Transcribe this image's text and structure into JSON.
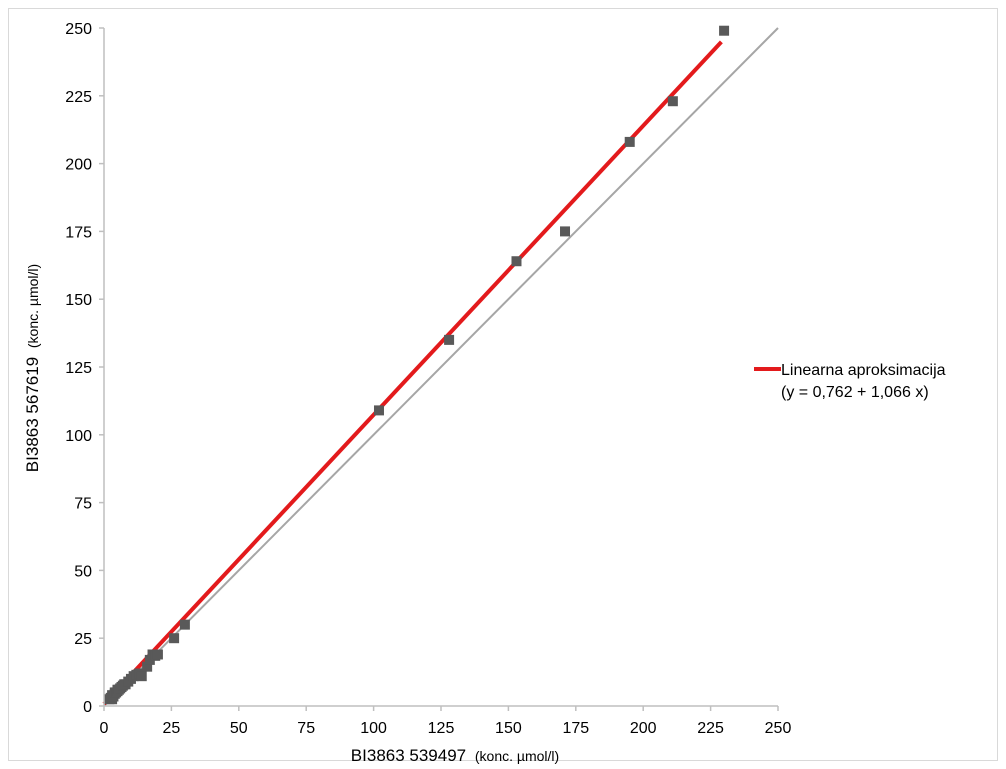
{
  "chart_data": {
    "type": "scatter",
    "xlabel": {
      "main": "BI3863 539497",
      "unit": "(konc. µmol/l)"
    },
    "ylabel": {
      "main": "BI3863 567619",
      "unit": "(konc. µmol/l)"
    },
    "xlim": [
      0,
      250
    ],
    "ylim": [
      0,
      250
    ],
    "xticks": [
      "0",
      "25",
      "50",
      "75",
      "100",
      "125",
      "150",
      "175",
      "200",
      "225",
      "250"
    ],
    "yticks": [
      "0",
      "25",
      "50",
      "75",
      "100",
      "125",
      "150",
      "175",
      "200",
      "225",
      "250"
    ],
    "grid": false,
    "points": {
      "x": [
        2,
        2.5,
        3,
        3,
        3.5,
        4,
        4,
        4.5,
        5,
        5,
        5.5,
        6,
        6.5,
        7,
        7.5,
        8,
        9,
        10,
        11,
        12,
        13,
        14,
        16,
        17,
        18,
        19,
        20,
        26,
        30,
        102,
        128,
        153,
        171,
        195,
        211,
        230
      ],
      "y": [
        2.5,
        3,
        2.5,
        4,
        3.5,
        4.5,
        5,
        5,
        5.5,
        6,
        6,
        6.5,
        7,
        7.5,
        8,
        8,
        9,
        10,
        11,
        11.5,
        12,
        11,
        14.5,
        17,
        19,
        18.5,
        19,
        25,
        30,
        109,
        135,
        164,
        175,
        208,
        223,
        249
      ],
      "color": "#595959"
    },
    "fit_line": {
      "name": "Linearna aproksimacija",
      "equation": "(y = 0,762 + 1,066 x)",
      "intercept": 0.762,
      "slope": 1.066,
      "x_range": [
        0,
        229
      ],
      "color": "#e31a1c"
    },
    "identity_line": {
      "x_range": [
        0,
        250
      ],
      "color": "#a6a6a6"
    },
    "legend_position": "right"
  }
}
